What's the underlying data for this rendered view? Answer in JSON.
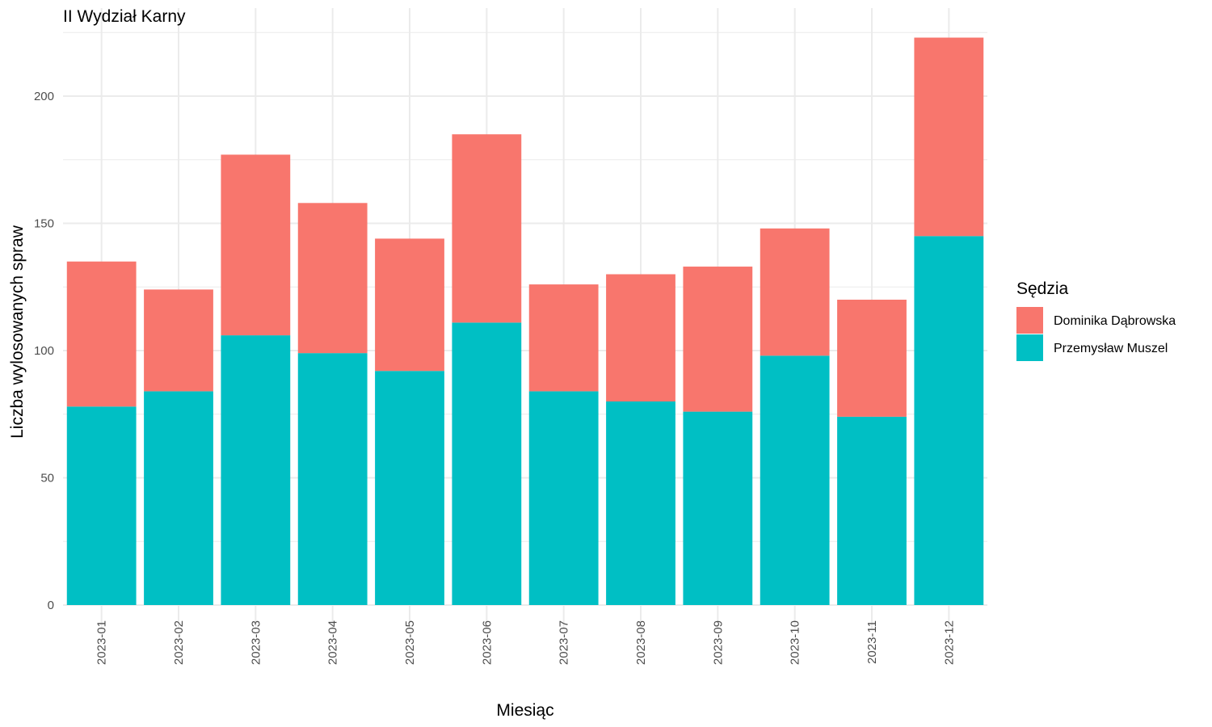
{
  "chart_data": {
    "type": "bar",
    "stacked": true,
    "title": "II Wydział Karny",
    "xlabel": "Miesiąc",
    "ylabel": "Liczba wylosowanych spraw",
    "ylim": [
      0,
      225
    ],
    "yticks": [
      0,
      50,
      100,
      150,
      200
    ],
    "grid": true,
    "legend_position": "right",
    "legend_title": "Sędzia",
    "categories": [
      "2023-01",
      "2023-02",
      "2023-03",
      "2023-04",
      "2023-05",
      "2023-06",
      "2023-07",
      "2023-08",
      "2023-09",
      "2023-10",
      "2023-11",
      "2023-12"
    ],
    "series": [
      {
        "name": "Przemysław Muszel",
        "color": "#00BFC4",
        "values": [
          78,
          84,
          106,
          99,
          92,
          111,
          84,
          80,
          76,
          98,
          74,
          145
        ]
      },
      {
        "name": "Dominika Dąbrowska",
        "color": "#F8766D",
        "values": [
          57,
          40,
          71,
          59,
          52,
          74,
          42,
          50,
          57,
          50,
          46,
          78
        ]
      }
    ],
    "legend_order": [
      "Dominika Dąbrowska",
      "Przemysław Muszel"
    ]
  }
}
